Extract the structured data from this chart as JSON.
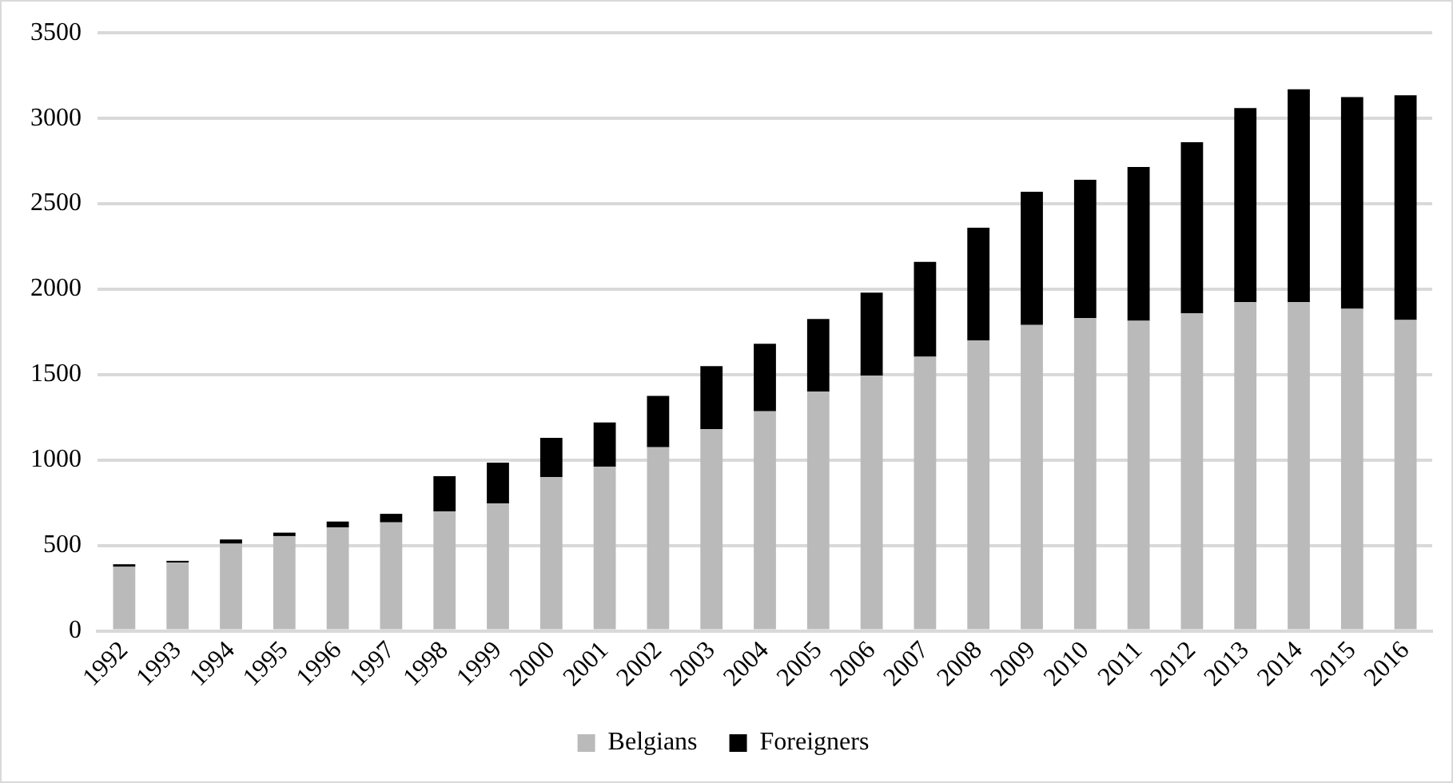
{
  "chart_data": {
    "type": "bar",
    "stacked": true,
    "categories": [
      "1992",
      "1993",
      "1994",
      "1995",
      "1996",
      "1997",
      "1998",
      "1999",
      "2000",
      "2001",
      "2002",
      "2003",
      "2004",
      "2005",
      "2006",
      "2007",
      "2008",
      "2009",
      "2010",
      "2011",
      "2012",
      "2013",
      "2014",
      "2015",
      "2016"
    ],
    "series": [
      {
        "name": "Belgians",
        "color": "#bababa",
        "values": [
          375,
          400,
          510,
          555,
          605,
          635,
          700,
          745,
          900,
          960,
          1075,
          1180,
          1285,
          1400,
          1495,
          1605,
          1700,
          1790,
          1830,
          1815,
          1860,
          1925,
          1925,
          1885,
          1820
        ]
      },
      {
        "name": "Foreigners",
        "color": "#000000",
        "values": [
          15,
          10,
          25,
          20,
          35,
          50,
          205,
          240,
          230,
          260,
          300,
          370,
          395,
          425,
          485,
          555,
          660,
          780,
          810,
          900,
          1000,
          1135,
          1245,
          1240,
          1315
        ]
      }
    ],
    "ylim": [
      0,
      3500
    ],
    "yticks": [
      0,
      500,
      1000,
      1500,
      2000,
      2500,
      3000,
      3500
    ],
    "grid": "y",
    "legend": "bottom"
  }
}
